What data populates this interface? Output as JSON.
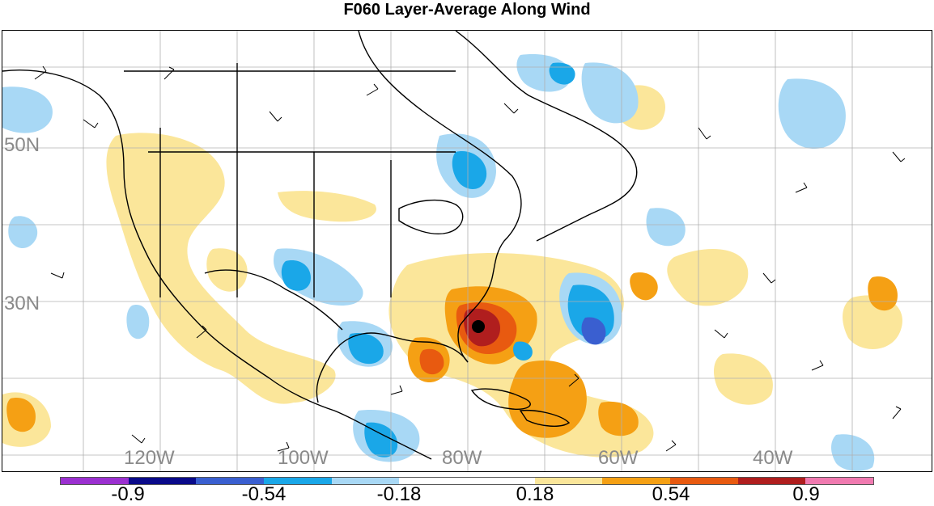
{
  "title": "F060 Layer-Average Along Wind",
  "lat_labels": [
    "50N",
    "30N"
  ],
  "lon_labels": [
    "120W",
    "100W",
    "80W",
    "60W",
    "40W"
  ],
  "colorbar": {
    "colors": [
      "#9b30d0",
      "#0a0a8a",
      "#3a5fd0",
      "#1aa7e8",
      "#a8d8f5",
      "#ffffff",
      "#ffffff",
      "#fbe69a",
      "#f5a014",
      "#e85a10",
      "#b01e1e",
      "#f07ab0"
    ],
    "labels": [
      "-0.9",
      "-0.54",
      "-0.18",
      "0.18",
      "0.54",
      "0.9"
    ]
  },
  "shading_colors": {
    "light_blue": "#a8d8f5",
    "blue": "#1aa7e8",
    "dark_blue": "#3a5fd0",
    "light_yellow": "#fbe69a",
    "orange": "#f5a014",
    "red_orange": "#e85a10",
    "dark_red": "#b01e1e"
  }
}
